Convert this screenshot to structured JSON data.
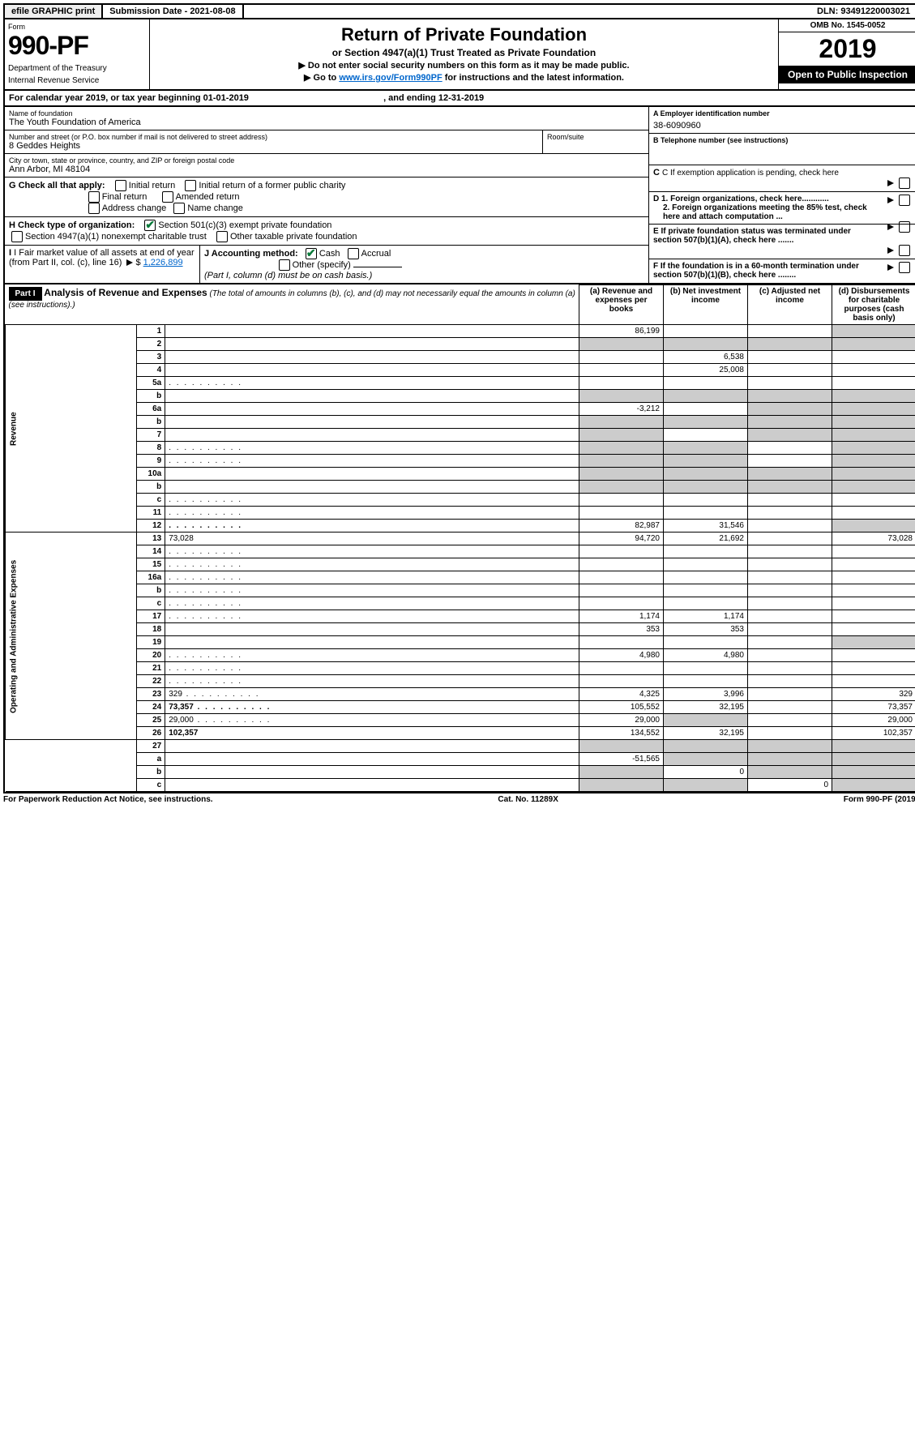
{
  "topbar": {
    "efile": "efile GRAPHIC print",
    "submission": "Submission Date - 2021-08-08",
    "dln": "DLN: 93491220003021"
  },
  "header": {
    "form_word": "Form",
    "form_number": "990-PF",
    "dept": "Department of the Treasury",
    "irs": "Internal Revenue Service",
    "title": "Return of Private Foundation",
    "subtitle": "or Section 4947(a)(1) Trust Treated as Private Foundation",
    "note1": "▶ Do not enter social security numbers on this form as it may be made public.",
    "note2_pre": "▶ Go to ",
    "note2_link": "www.irs.gov/Form990PF",
    "note2_post": " for instructions and the latest information.",
    "omb": "OMB No. 1545-0052",
    "year": "2019",
    "inspect": "Open to Public Inspection"
  },
  "cal": {
    "label_pre": "For calendar year 2019, or tax year beginning ",
    "begin": "01-01-2019",
    "mid": " , and ending ",
    "end": "12-31-2019"
  },
  "identity": {
    "name_label": "Name of foundation",
    "name": "The Youth Foundation of America",
    "addr_label": "Number and street (or P.O. box number if mail is not delivered to street address)",
    "addr": "8 Geddes Heights",
    "room_label": "Room/suite",
    "city_label": "City or town, state or province, country, and ZIP or foreign postal code",
    "city": "Ann Arbor, MI  48104",
    "ein_label": "A Employer identification number",
    "ein": "38-6090960",
    "tel_label": "B Telephone number (see instructions)",
    "c_label": "C If exemption application is pending, check here"
  },
  "g": {
    "label": "G Check all that apply:",
    "initial": "Initial return",
    "initial_former": "Initial return of a former public charity",
    "final": "Final return",
    "amended": "Amended return",
    "addr_change": "Address change",
    "name_change": "Name change"
  },
  "h": {
    "label": "H Check type of organization:",
    "s501": "Section 501(c)(3) exempt private foundation",
    "s4947": "Section 4947(a)(1) nonexempt charitable trust",
    "other": "Other taxable private foundation"
  },
  "i": {
    "label": "I Fair market value of all assets at end of year (from Part II, col. (c), line 16)",
    "amount": "1,226,899"
  },
  "j": {
    "label": "J Accounting method:",
    "cash": "Cash",
    "accrual": "Accrual",
    "other": "Other (specify)",
    "note": "(Part I, column (d) must be on cash basis.)"
  },
  "d": {
    "d1": "D 1. Foreign organizations, check here............",
    "d2": "2. Foreign organizations meeting the 85% test, check here and attach computation ..."
  },
  "e": {
    "label": "E   If private foundation status was terminated under section 507(b)(1)(A), check here ......."
  },
  "f": {
    "label": "F   If the foundation is in a 60-month termination under section 507(b)(1)(B), check here ........"
  },
  "part1": {
    "tag": "Part I",
    "title": "Analysis of Revenue and Expenses",
    "title_note": " (The total of amounts in columns (b), (c), and (d) may not necessarily equal the amounts in column (a) (see instructions).)",
    "col_a": "(a)   Revenue and expenses per books",
    "col_b": "(b)  Net investment income",
    "col_c": "(c)  Adjusted net income",
    "col_d": "(d)  Disbursements for charitable purposes (cash basis only)"
  },
  "sections": {
    "revenue": "Revenue",
    "expenses": "Operating and Administrative Expenses"
  },
  "rows": {
    "r1": {
      "n": "1",
      "d": "",
      "a": "86,199",
      "b": "",
      "c": ""
    },
    "r2": {
      "n": "2",
      "d": "",
      "a": "",
      "b": "",
      "c": ""
    },
    "r3": {
      "n": "3",
      "d": "",
      "a": "",
      "b": "6,538",
      "c": ""
    },
    "r4": {
      "n": "4",
      "d": "",
      "a": "",
      "b": "25,008",
      "c": ""
    },
    "r5a": {
      "n": "5a",
      "d": "",
      "a": "",
      "b": "",
      "c": ""
    },
    "r5b": {
      "n": "b",
      "d": "",
      "a": "",
      "b": "",
      "c": ""
    },
    "r6a": {
      "n": "6a",
      "d": "",
      "a": "-3,212",
      "b": "",
      "c": ""
    },
    "r6b": {
      "n": "b",
      "d": "",
      "a": "",
      "b": "",
      "c": ""
    },
    "r7": {
      "n": "7",
      "d": "",
      "a": "",
      "b": "",
      "c": ""
    },
    "r8": {
      "n": "8",
      "d": "",
      "a": "",
      "b": "",
      "c": ""
    },
    "r9": {
      "n": "9",
      "d": "",
      "a": "",
      "b": "",
      "c": ""
    },
    "r10a": {
      "n": "10a",
      "d": "",
      "a": "",
      "b": "",
      "c": ""
    },
    "r10b": {
      "n": "b",
      "d": "",
      "a": "",
      "b": "",
      "c": ""
    },
    "r10c": {
      "n": "c",
      "d": "",
      "a": "",
      "b": "",
      "c": ""
    },
    "r11": {
      "n": "11",
      "d": "",
      "a": "",
      "b": "",
      "c": ""
    },
    "r12": {
      "n": "12",
      "d": "",
      "a": "82,987",
      "b": "31,546",
      "c": ""
    },
    "r13": {
      "n": "13",
      "d": "73,028",
      "a": "94,720",
      "b": "21,692",
      "c": ""
    },
    "r14": {
      "n": "14",
      "d": "",
      "a": "",
      "b": "",
      "c": ""
    },
    "r15": {
      "n": "15",
      "d": "",
      "a": "",
      "b": "",
      "c": ""
    },
    "r16a": {
      "n": "16a",
      "d": "",
      "a": "",
      "b": "",
      "c": ""
    },
    "r16b": {
      "n": "b",
      "d": "",
      "a": "",
      "b": "",
      "c": ""
    },
    "r16c": {
      "n": "c",
      "d": "",
      "a": "",
      "b": "",
      "c": ""
    },
    "r17": {
      "n": "17",
      "d": "",
      "a": "1,174",
      "b": "1,174",
      "c": ""
    },
    "r18": {
      "n": "18",
      "d": "",
      "a": "353",
      "b": "353",
      "c": ""
    },
    "r19": {
      "n": "19",
      "d": "",
      "a": "",
      "b": "",
      "c": ""
    },
    "r20": {
      "n": "20",
      "d": "",
      "a": "4,980",
      "b": "4,980",
      "c": ""
    },
    "r21": {
      "n": "21",
      "d": "",
      "a": "",
      "b": "",
      "c": ""
    },
    "r22": {
      "n": "22",
      "d": "",
      "a": "",
      "b": "",
      "c": ""
    },
    "r23": {
      "n": "23",
      "d": "329",
      "a": "4,325",
      "b": "3,996",
      "c": ""
    },
    "r24": {
      "n": "24",
      "d": "73,357",
      "a": "105,552",
      "b": "32,195",
      "c": ""
    },
    "r25": {
      "n": "25",
      "d": "29,000",
      "a": "29,000",
      "b": "",
      "c": ""
    },
    "r26": {
      "n": "26",
      "d": "102,357",
      "a": "134,552",
      "b": "32,195",
      "c": ""
    },
    "r27": {
      "n": "27",
      "d": "",
      "a": "",
      "b": "",
      "c": ""
    },
    "r27a": {
      "n": "a",
      "d": "",
      "a": "-51,565",
      "b": "",
      "c": ""
    },
    "r27b": {
      "n": "b",
      "d": "",
      "a": "",
      "b": "0",
      "c": ""
    },
    "r27c": {
      "n": "c",
      "d": "",
      "a": "",
      "b": "",
      "c": "0"
    }
  },
  "footer": {
    "left": "For Paperwork Reduction Act Notice, see instructions.",
    "mid": "Cat. No. 11289X",
    "right": "Form 990-PF (2019)"
  },
  "grey_cells": {
    "r1": [
      "d"
    ],
    "r2": [
      "a",
      "b",
      "c",
      "d"
    ],
    "r5b": [
      "a",
      "b",
      "c",
      "d"
    ],
    "r6a": [
      "c",
      "d"
    ],
    "r6b": [
      "a",
      "b",
      "c",
      "d"
    ],
    "r7": [
      "a",
      "c",
      "d"
    ],
    "r8": [
      "a",
      "b",
      "d"
    ],
    "r9": [
      "a",
      "b",
      "d"
    ],
    "r10a": [
      "a",
      "b",
      "c",
      "d"
    ],
    "r10b": [
      "a",
      "b",
      "c",
      "d"
    ],
    "r12": [
      "d"
    ],
    "r19": [
      "d"
    ],
    "r25": [
      "b"
    ],
    "r27": [
      "a",
      "b",
      "c",
      "d"
    ],
    "r27a": [
      "b",
      "c",
      "d"
    ],
    "r27b": [
      "a",
      "c",
      "d"
    ],
    "r27c": [
      "a",
      "b",
      "d"
    ]
  }
}
